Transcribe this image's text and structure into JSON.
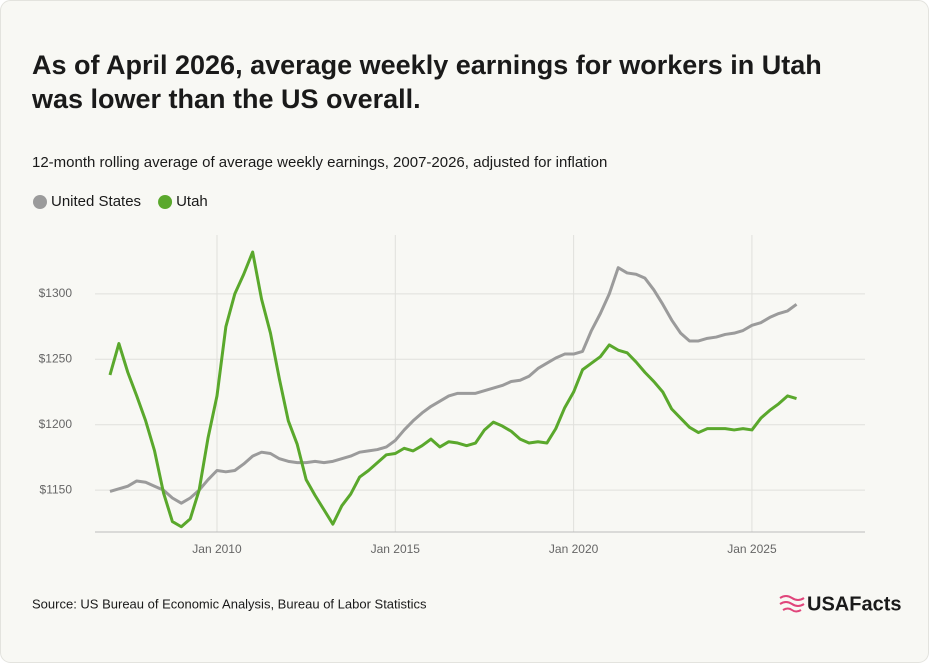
{
  "chart_data": {
    "type": "line",
    "title": "As of April 2026, average weekly earnings for workers in Utah was lower than the US overall.",
    "subtitle": "12-month rolling average of average weekly earnings, 2007-2026, adjusted for inflation",
    "source": "Source: US Bureau of Economic Analysis, Bureau of Labor Statistics",
    "logo": "USAFacts",
    "x": [
      2007.0,
      2007.25,
      2007.5,
      2007.75,
      2008.0,
      2008.25,
      2008.5,
      2008.75,
      2009.0,
      2009.25,
      2009.5,
      2009.75,
      2010.0,
      2010.25,
      2010.5,
      2010.75,
      2011.0,
      2011.25,
      2011.5,
      2011.75,
      2012.0,
      2012.25,
      2012.5,
      2012.75,
      2013.0,
      2013.25,
      2013.5,
      2013.75,
      2014.0,
      2014.25,
      2014.5,
      2014.75,
      2015.0,
      2015.25,
      2015.5,
      2015.75,
      2016.0,
      2016.25,
      2016.5,
      2016.75,
      2017.0,
      2017.25,
      2017.5,
      2017.75,
      2018.0,
      2018.25,
      2018.5,
      2018.75,
      2019.0,
      2019.25,
      2019.5,
      2019.75,
      2020.0,
      2020.25,
      2020.5,
      2020.75,
      2021.0,
      2021.25,
      2021.5,
      2021.75,
      2022.0,
      2022.25,
      2022.5,
      2022.75,
      2023.0,
      2023.25,
      2023.5,
      2023.75,
      2024.0,
      2024.25,
      2024.5,
      2024.75,
      2025.0,
      2025.25,
      2025.5,
      2025.75,
      2026.0,
      2026.25
    ],
    "series": [
      {
        "name": "United States",
        "color": "#9b9b9b",
        "values": [
          1149,
          1151,
          1153,
          1157,
          1156,
          1153,
          1150,
          1144,
          1140,
          1144,
          1150,
          1158,
          1165,
          1164,
          1165,
          1170,
          1176,
          1179,
          1178,
          1174,
          1172,
          1171,
          1171,
          1172,
          1171,
          1172,
          1174,
          1176,
          1179,
          1180,
          1181,
          1183,
          1188,
          1196,
          1203,
          1209,
          1214,
          1218,
          1222,
          1224,
          1224,
          1224,
          1226,
          1228,
          1230,
          1233,
          1234,
          1237,
          1243,
          1247,
          1251,
          1254,
          1254,
          1256,
          1272,
          1285,
          1300,
          1320,
          1316,
          1315,
          1312,
          1303,
          1292,
          1280,
          1270,
          1264,
          1264,
          1266,
          1267,
          1269,
          1270,
          1272,
          1276,
          1278,
          1282,
          1285,
          1287,
          1292
        ]
      },
      {
        "name": "Utah",
        "color": "#5aa82c",
        "values": [
          1238,
          1262,
          1240,
          1222,
          1203,
          1180,
          1148,
          1126,
          1122,
          1128,
          1150,
          1190,
          1222,
          1275,
          1300,
          1315,
          1332,
          1296,
          1270,
          1235,
          1203,
          1185,
          1158,
          1146,
          1135,
          1124,
          1138,
          1147,
          1160,
          1165,
          1171,
          1177,
          1178,
          1182,
          1180,
          1184,
          1189,
          1183,
          1187,
          1186,
          1184,
          1186,
          1196,
          1202,
          1199,
          1195,
          1189,
          1186,
          1187,
          1186,
          1197,
          1213,
          1225,
          1242,
          1247,
          1252,
          1261,
          1257,
          1255,
          1248,
          1240,
          1233,
          1225,
          1212,
          1205,
          1198,
          1194,
          1197,
          1197,
          1197,
          1196,
          1197,
          1196,
          1205,
          1211,
          1216,
          1222,
          1220
        ]
      }
    ],
    "xlim": [
      2006.58,
      2028.17
    ],
    "ylim": [
      1118,
      1345
    ],
    "xticks": [
      {
        "value": 2010,
        "label": "Jan 2010"
      },
      {
        "value": 2015,
        "label": "Jan 2015"
      },
      {
        "value": 2020,
        "label": "Jan 2020"
      },
      {
        "value": 2025,
        "label": "Jan 2025"
      }
    ],
    "yticks": [
      {
        "value": 1150,
        "label": "$1150"
      },
      {
        "value": 1200,
        "label": "$1200"
      },
      {
        "value": 1250,
        "label": "$1250"
      },
      {
        "value": 1300,
        "label": "$1300"
      }
    ],
    "grid": true
  }
}
